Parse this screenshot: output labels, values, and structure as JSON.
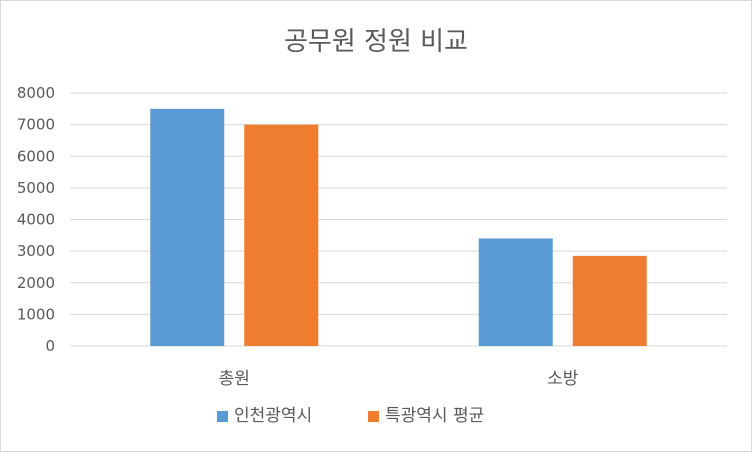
{
  "chart_data": {
    "type": "bar",
    "title": "공무원 정원 비교",
    "categories": [
      "총원",
      "소방"
    ],
    "series": [
      {
        "name": "인천광역시",
        "values": [
          7500,
          3400
        ],
        "color": "#5b9bd5"
      },
      {
        "name": "특광역시 평균",
        "values": [
          7000,
          2850
        ],
        "color": "#ed7d31"
      }
    ],
    "ylim": [
      0,
      8000
    ],
    "yticks": [
      0,
      1000,
      2000,
      3000,
      4000,
      5000,
      6000,
      7000,
      8000
    ],
    "grid": true,
    "legend": "bottom"
  }
}
